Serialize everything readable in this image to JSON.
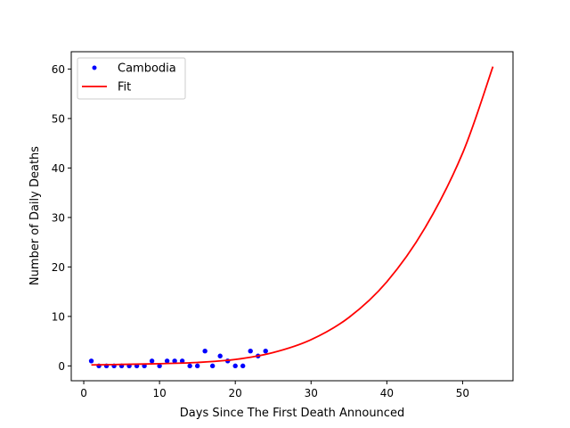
{
  "chart_data": {
    "type": "scatter",
    "title": "",
    "xlabel": "Days Since The First Death Announced",
    "ylabel": "Number of Daily Deaths",
    "xlim": [
      -1.65,
      56.65
    ],
    "ylim": [
      -3.0,
      63.5
    ],
    "xticks": [
      0,
      10,
      20,
      30,
      40,
      50
    ],
    "yticks": [
      0,
      10,
      20,
      30,
      40,
      50,
      60
    ],
    "grid": false,
    "legend_position": "top-left",
    "series": [
      {
        "name": "Cambodia",
        "kind": "points",
        "color": "#0000ff",
        "x": [
          1,
          2,
          3,
          4,
          5,
          6,
          7,
          8,
          9,
          10,
          11,
          12,
          13,
          14,
          15,
          16,
          17,
          18,
          19,
          20,
          21,
          22,
          23,
          24
        ],
        "y": [
          1,
          0,
          0,
          0,
          0,
          0,
          0,
          0,
          1,
          0,
          1,
          1,
          1,
          0,
          0,
          3,
          0,
          2,
          1,
          0,
          0,
          3,
          2,
          3
        ]
      },
      {
        "name": "Fit",
        "kind": "line",
        "color": "#ff0000",
        "x": [
          1,
          5,
          10,
          15,
          20,
          25,
          30,
          35,
          40,
          45,
          50,
          54
        ],
        "y": [
          0.2,
          0.3,
          0.45,
          0.7,
          1.3,
          2.7,
          5.3,
          9.8,
          17.0,
          27.8,
          43.0,
          60.5
        ]
      }
    ]
  }
}
